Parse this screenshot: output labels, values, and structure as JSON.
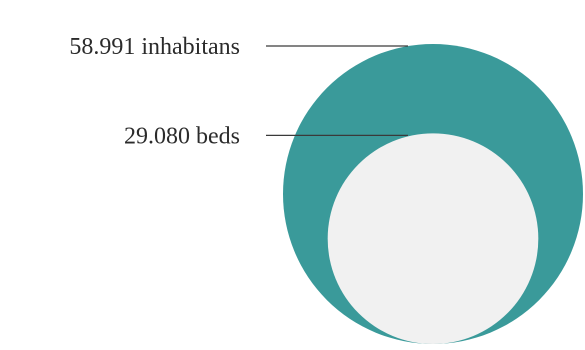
{
  "chart_data": {
    "type": "bubble",
    "title": "",
    "series": [
      {
        "label": "58.991 inhabitans",
        "value": 58991,
        "color": "#3a9a9a"
      },
      {
        "label": "29.080 beds",
        "value": 29080,
        "color": "#f1f1f1"
      }
    ],
    "layout": "nested-bottom-aligned",
    "label_side": "left"
  }
}
